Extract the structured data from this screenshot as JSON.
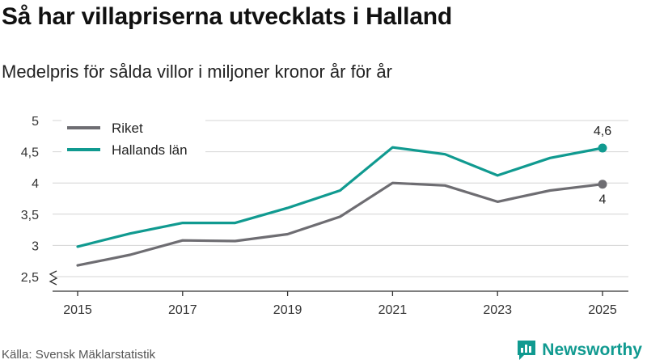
{
  "title": "Så har villapriserna utvecklats i Halland",
  "subtitle": "Medelpris för sålda villor i miljoner kronor år för år",
  "source": "Källa: Svensk Mäklarstatistik",
  "brand": {
    "name": "Newsworthy",
    "icon": "newsworthy-logo-icon"
  },
  "chart_data": {
    "type": "line",
    "title": "Så har villapriserna utvecklats i Halland",
    "subtitle": "Medelpris för sålda villor i miljoner kronor år för år",
    "xlabel": "",
    "ylabel": "",
    "x": [
      2015,
      2016,
      2017,
      2018,
      2019,
      2020,
      2021,
      2022,
      2023,
      2024,
      2025
    ],
    "xticks": [
      2015,
      2017,
      2019,
      2021,
      2023,
      2025
    ],
    "xtick_labels": [
      "2015",
      "2017",
      "2019",
      "2021",
      "2023",
      "2025"
    ],
    "yticks": [
      2.5,
      3,
      3.5,
      4,
      4.5,
      5
    ],
    "ytick_labels": [
      "2,5",
      "3",
      "3,5",
      "4",
      "4,5",
      "5"
    ],
    "ylim": [
      2.5,
      5
    ],
    "axis_break": true,
    "grid": true,
    "legend_position": "top-left",
    "series": [
      {
        "name": "Riket",
        "color": "#6e6d72",
        "values": [
          2.68,
          2.85,
          3.08,
          3.07,
          3.18,
          3.46,
          4.0,
          3.96,
          3.7,
          3.88,
          3.98
        ],
        "end_label": "4"
      },
      {
        "name": "Hallands län",
        "color": "#109a90",
        "values": [
          2.98,
          3.19,
          3.36,
          3.36,
          3.6,
          3.88,
          4.57,
          4.46,
          4.12,
          4.4,
          4.56
        ],
        "end_label": "4,6"
      }
    ]
  }
}
